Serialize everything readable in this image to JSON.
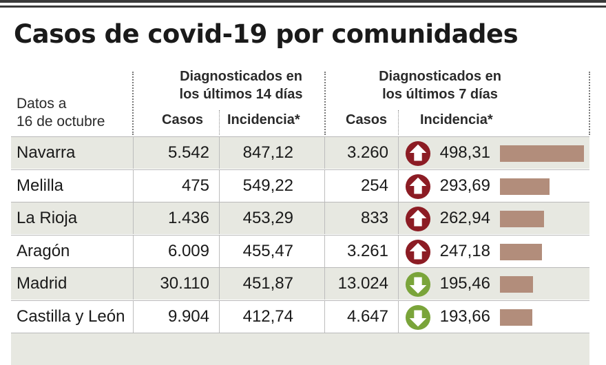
{
  "title": "Casos de covid-19 por comunidades",
  "header": {
    "date_label_line1": "Datos a",
    "date_label_line2": "16 de octubre",
    "group14_line1": "Diagnosticados en",
    "group14_line2": "los últimos 14 días",
    "group7_line1": "Diagnosticados en",
    "group7_line2": "los últimos 7 días",
    "casos": "Casos",
    "incidencia": "Incidencia*"
  },
  "colors": {
    "up": "#8c1c24",
    "down": "#7aa43a",
    "bar": "#b28d7b",
    "shade": "#e7e8e1"
  },
  "chart_data": {
    "type": "table",
    "columns": [
      "Casos (14 días)",
      "Incidencia* (14 días)",
      "Casos (7 días)",
      "Incidencia* (7 días)"
    ],
    "bar_max": 498.31,
    "rows": [
      {
        "name": "Navarra",
        "casos14": "5.542",
        "inc14": "847,12",
        "casos7": "3.260",
        "inc7": "498,31",
        "inc7_value": 498.31,
        "trend": "up"
      },
      {
        "name": "Melilla",
        "casos14": "475",
        "inc14": "549,22",
        "casos7": "254",
        "inc7": "293,69",
        "inc7_value": 293.69,
        "trend": "up"
      },
      {
        "name": "La Rioja",
        "casos14": "1.436",
        "inc14": "453,29",
        "casos7": "833",
        "inc7": "262,94",
        "inc7_value": 262.94,
        "trend": "up"
      },
      {
        "name": "Aragón",
        "casos14": "6.009",
        "inc14": "455,47",
        "casos7": "3.261",
        "inc7": "247,18",
        "inc7_value": 247.18,
        "trend": "up"
      },
      {
        "name": "Madrid",
        "casos14": "30.110",
        "inc14": "451,87",
        "casos7": "13.024",
        "inc7": "195,46",
        "inc7_value": 195.46,
        "trend": "down"
      },
      {
        "name": "Castilla y León",
        "casos14": "9.904",
        "inc14": "412,74",
        "casos7": "4.647",
        "inc7": "193,66",
        "inc7_value": 193.66,
        "trend": "down"
      }
    ]
  }
}
